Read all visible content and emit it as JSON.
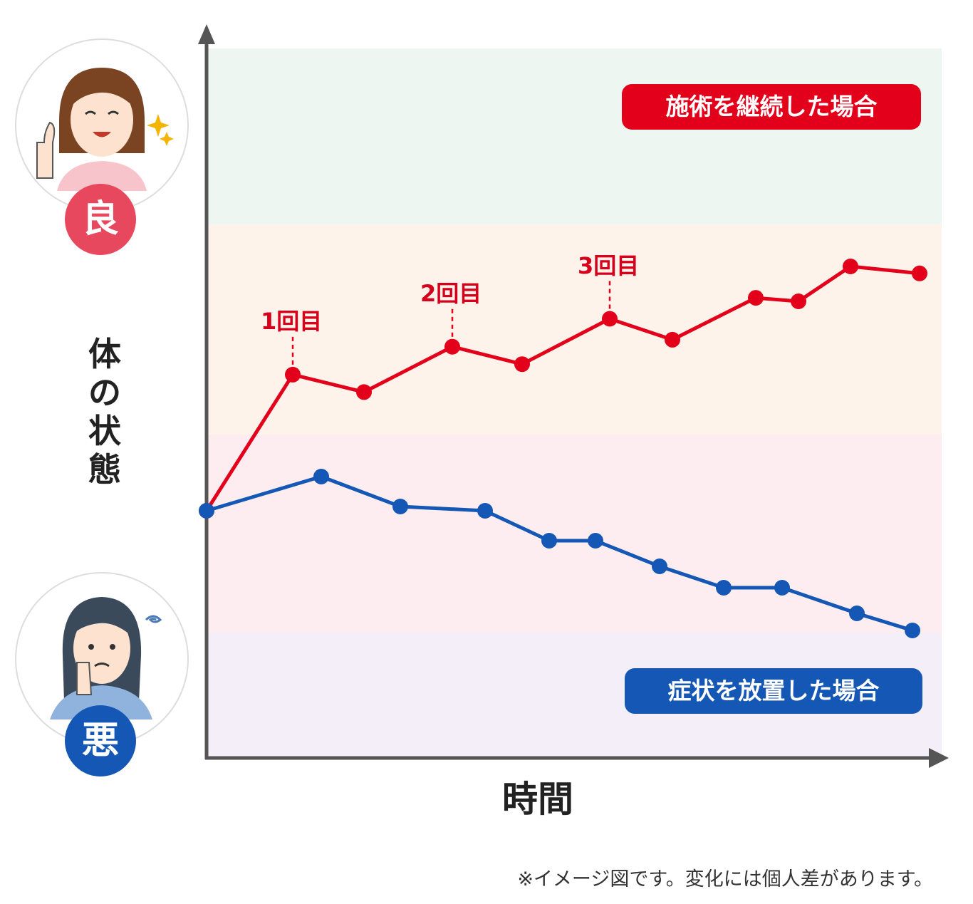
{
  "chart_data": {
    "type": "line",
    "ylabel": "体の状態",
    "xlabel": "時間",
    "y_top_label": "良",
    "y_bottom_label": "悪",
    "footnote": "※イメージ図です。変化には個人差があります。",
    "series": [
      {
        "name": "施術を継続した場合",
        "color": "#e3001b",
        "points": [
          [
            0,
            0
          ],
          [
            1,
            39
          ],
          [
            2,
            34
          ],
          [
            3,
            47
          ],
          [
            4,
            42
          ],
          [
            5,
            55
          ],
          [
            6,
            49
          ],
          [
            7,
            61
          ],
          [
            8,
            60
          ],
          [
            9,
            70
          ],
          [
            10,
            68
          ]
        ]
      },
      {
        "name": "症状を放置した場合",
        "color": "#1457b5",
        "points": [
          [
            0,
            0
          ],
          [
            1,
            8
          ],
          [
            2,
            1
          ],
          [
            3,
            0
          ],
          [
            4,
            -7
          ],
          [
            5,
            -7
          ],
          [
            6,
            -13
          ],
          [
            7,
            -18
          ],
          [
            8,
            -18
          ],
          [
            9,
            -24
          ],
          [
            10,
            -28
          ]
        ]
      }
    ],
    "annotations": [
      {
        "label": "1回目",
        "point_index": 1
      },
      {
        "label": "2回目",
        "point_index": 3
      },
      {
        "label": "3回目",
        "point_index": 5
      }
    ],
    "bands": [
      {
        "color": "#eef6f2"
      },
      {
        "color": "#fdf3ea"
      },
      {
        "color": "#fdedf1"
      },
      {
        "color": "#f3eef8"
      }
    ],
    "axis_color": "#555555",
    "grid": false
  }
}
